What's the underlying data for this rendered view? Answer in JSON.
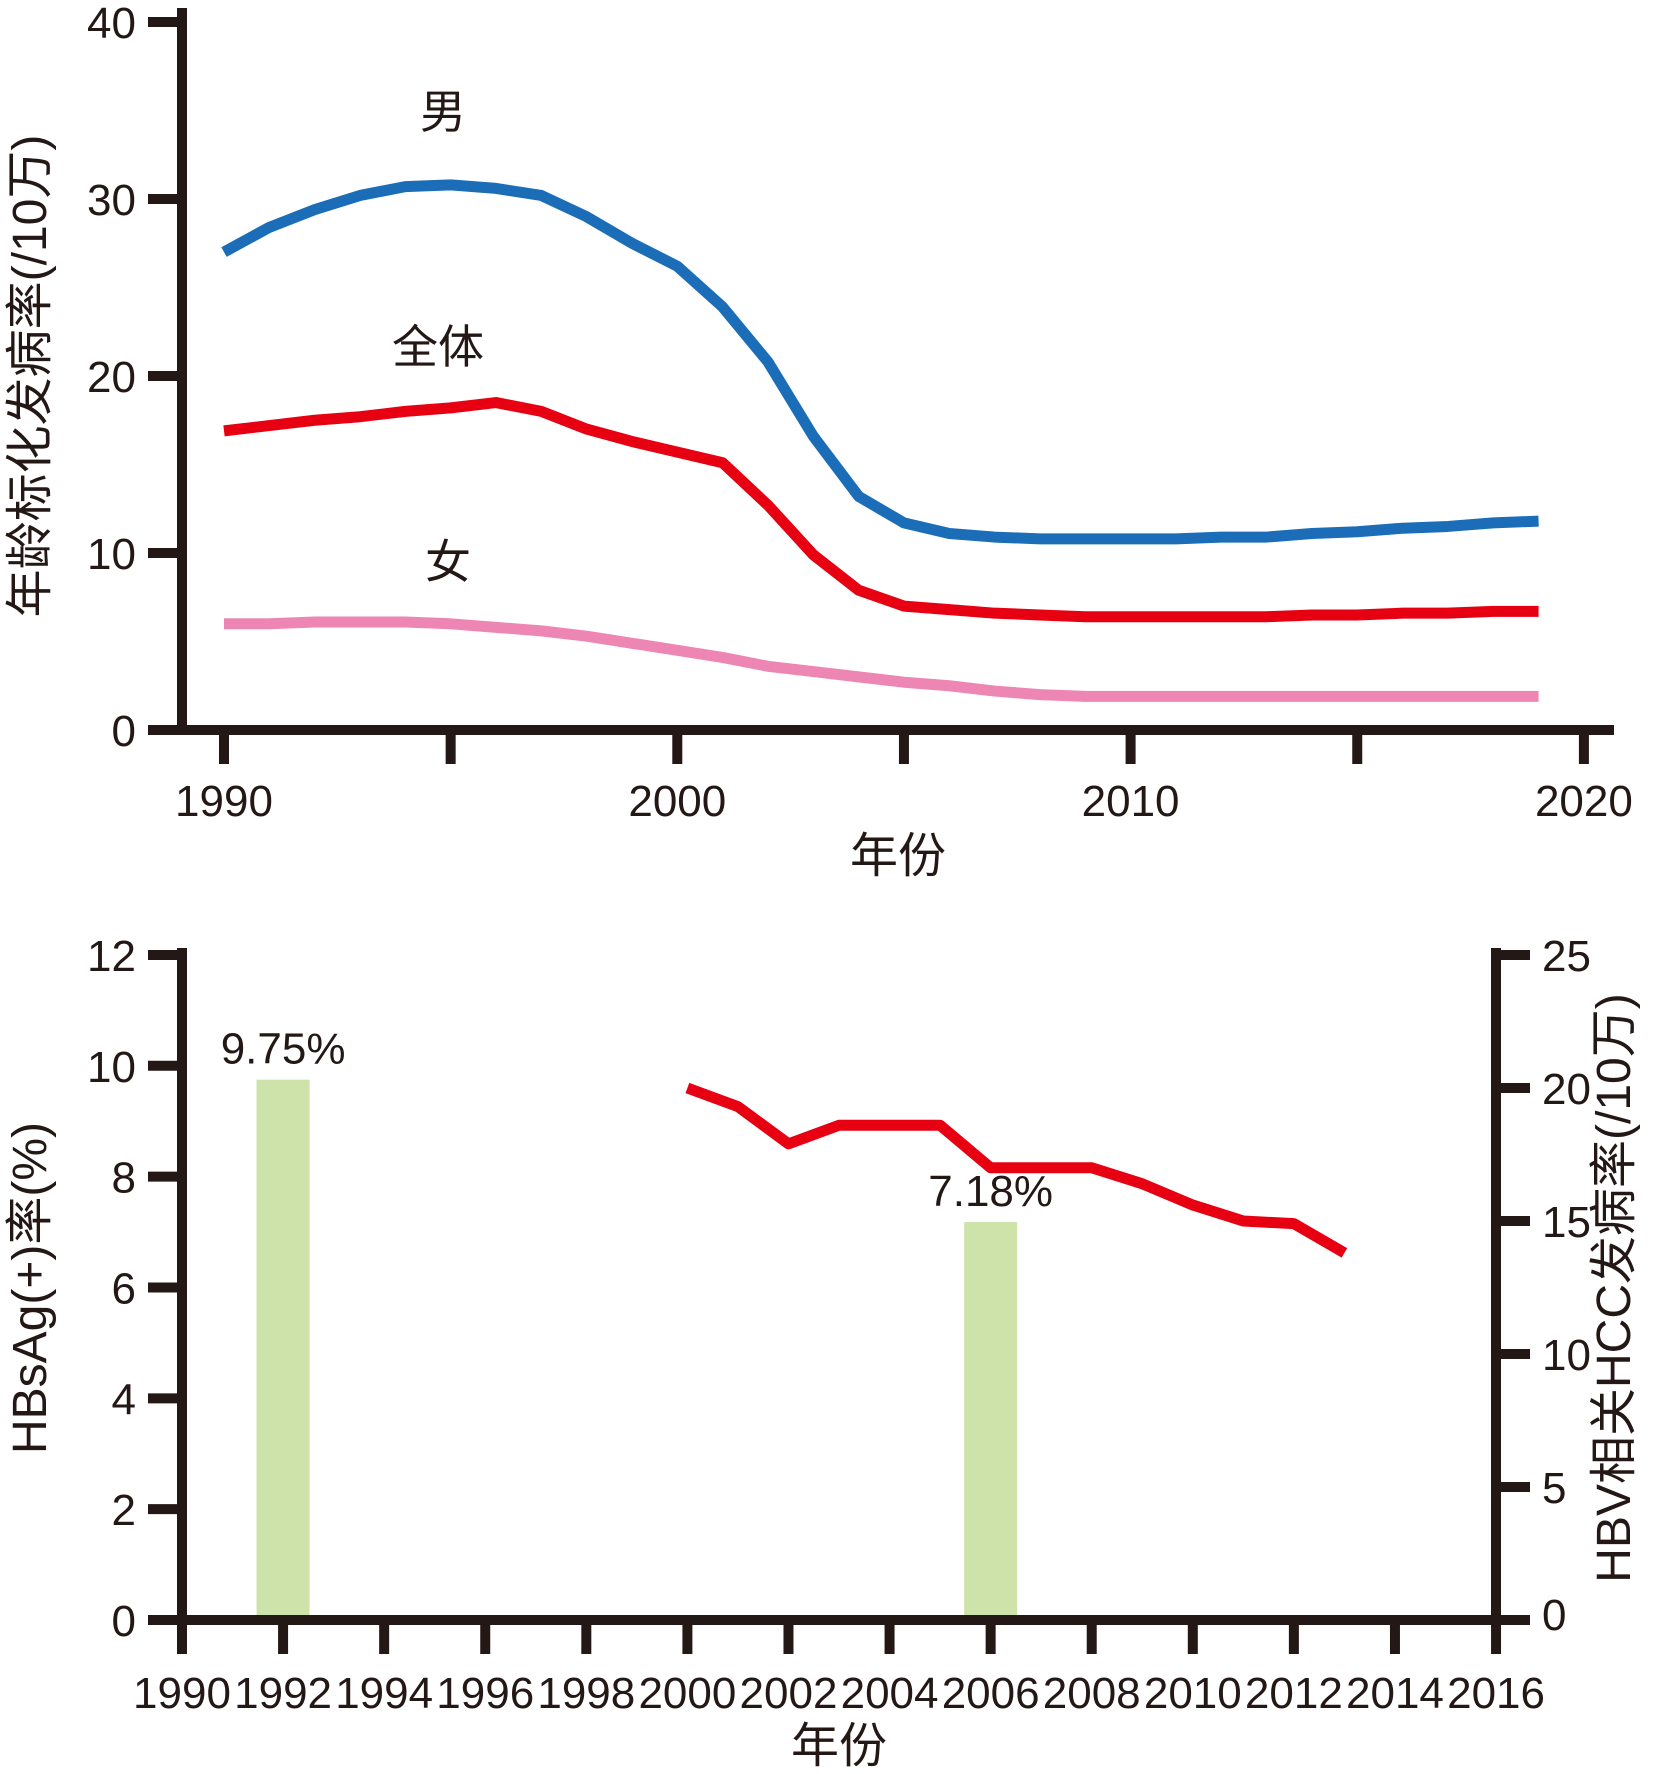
{
  "figure": {
    "background": "#ffffff"
  },
  "colors": {
    "axis": "#231815",
    "male": "#1b6db8",
    "total": "#e60012",
    "female": "#ee86b4",
    "hbsag_bar": "#cde3aa",
    "hcc_line": "#e60012"
  },
  "chart_data": [
    {
      "type": "line",
      "title": "",
      "xlabel": "年份",
      "ylabel": "年龄标化发病率(/10万)",
      "xlim": [
        1990,
        2020
      ],
      "ylim": [
        0,
        40
      ],
      "grid": false,
      "legend_position": "inline-labels",
      "y_ticks": [
        0,
        10,
        20,
        30,
        40
      ],
      "x_ticks": [
        1990,
        1995,
        2000,
        2005,
        2010,
        2015,
        2020
      ],
      "x_tick_labels": [
        1990,
        2000,
        2010,
        2020
      ],
      "years": [
        1990,
        1991,
        1992,
        1993,
        1994,
        1995,
        1996,
        1997,
        1998,
        1999,
        2000,
        2001,
        2002,
        2003,
        2004,
        2005,
        2006,
        2007,
        2008,
        2009,
        2010,
        2011,
        2012,
        2013,
        2014,
        2015,
        2016,
        2017,
        2018,
        2019
      ],
      "series": [
        {
          "key": "male",
          "name": "男",
          "color_key": "male",
          "values": [
            27.0,
            28.4,
            29.4,
            30.2,
            30.7,
            30.8,
            30.6,
            30.2,
            29.0,
            27.5,
            26.2,
            23.9,
            20.8,
            16.6,
            13.2,
            11.7,
            11.1,
            10.9,
            10.8,
            10.8,
            10.8,
            10.8,
            10.9,
            10.9,
            11.1,
            11.2,
            11.4,
            11.5,
            11.7,
            11.8
          ]
        },
        {
          "key": "total",
          "name": "全体",
          "color_key": "total",
          "values": [
            16.9,
            17.2,
            17.5,
            17.7,
            18.0,
            18.2,
            18.5,
            18.0,
            17.0,
            16.3,
            15.7,
            15.1,
            12.7,
            9.9,
            7.9,
            7.0,
            6.8,
            6.6,
            6.5,
            6.4,
            6.4,
            6.4,
            6.4,
            6.4,
            6.5,
            6.5,
            6.6,
            6.6,
            6.7,
            6.7
          ]
        },
        {
          "key": "female",
          "name": "女",
          "color_key": "female",
          "values": [
            6.0,
            6.0,
            6.1,
            6.1,
            6.1,
            6.0,
            5.8,
            5.6,
            5.3,
            4.9,
            4.5,
            4.1,
            3.6,
            3.3,
            3.0,
            2.7,
            2.5,
            2.2,
            2.0,
            1.9,
            1.9,
            1.9,
            1.9,
            1.9,
            1.9,
            1.9,
            1.9,
            1.9,
            1.9,
            1.9
          ]
        }
      ]
    },
    {
      "type": "bar+line",
      "title": "",
      "x_axis": {
        "label": "年份",
        "range": [
          1990,
          2016
        ],
        "ticks": [
          1990,
          1992,
          1994,
          1996,
          1998,
          2000,
          2002,
          2004,
          2006,
          2008,
          2010,
          2012,
          2014,
          2016
        ]
      },
      "left_axis": {
        "label": "HBsAg(+)率(%)",
        "range": [
          0,
          12
        ],
        "ticks": [
          0,
          2,
          4,
          6,
          8,
          10,
          12
        ]
      },
      "right_axis": {
        "label": "HBV相关HCC发病率(/10万)",
        "range": [
          0,
          25
        ],
        "ticks": [
          0,
          5,
          10,
          15,
          20,
          25
        ]
      },
      "bars": {
        "axis": "left",
        "color_key": "hbsag_bar",
        "years": [
          1992,
          2006
        ],
        "values": [
          9.75,
          7.18
        ],
        "labels": [
          "9.75%",
          "7.18%"
        ]
      },
      "line": {
        "axis": "right",
        "color_key": "hcc_line",
        "years": [
          2000,
          2001,
          2002,
          2003,
          2004,
          2005,
          2006,
          2007,
          2008,
          2009,
          2010,
          2011,
          2012,
          2013
        ],
        "values": [
          20.0,
          19.3,
          17.9,
          18.6,
          18.6,
          18.6,
          17.0,
          17.0,
          17.0,
          16.4,
          15.6,
          15.0,
          14.9,
          13.8
        ]
      }
    }
  ]
}
